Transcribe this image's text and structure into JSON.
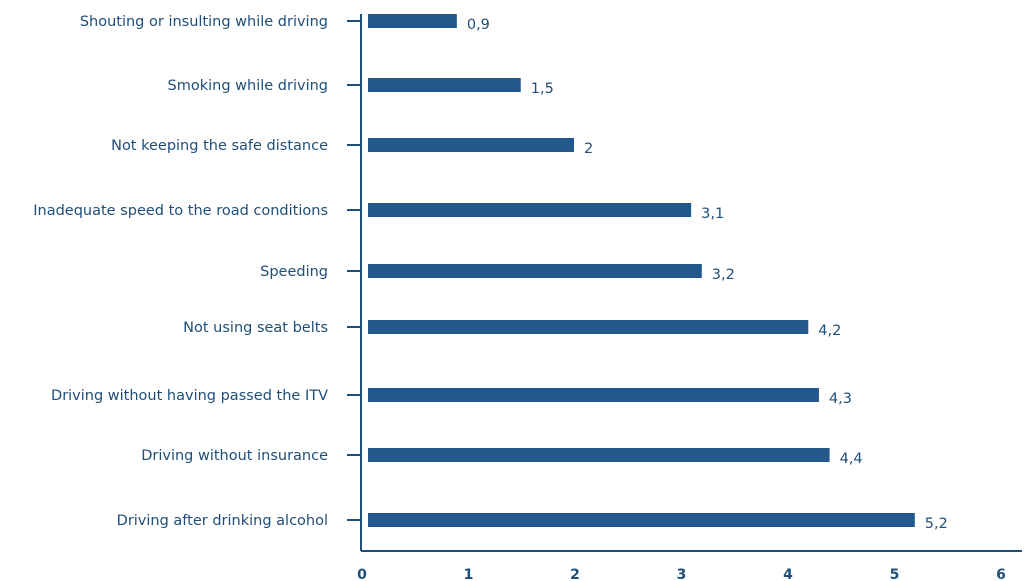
{
  "chart_data": {
    "type": "bar",
    "orientation": "horizontal",
    "categories": [
      "Shouting or insulting while driving",
      "Smoking while driving",
      "Not keeping the safe distance",
      "Inadequate speed to the road conditions",
      "Speeding",
      "Not using seat belts",
      "Driving without having passed the ITV",
      "Driving without insurance",
      "Driving after drinking alcohol"
    ],
    "values": [
      0.9,
      1.5,
      2,
      3.1,
      3.2,
      4.2,
      4.3,
      4.4,
      5.2
    ],
    "value_labels": [
      "0,9",
      "1,5",
      "2",
      "3,1",
      "3,2",
      "4,2",
      "4,3",
      "4,4",
      "5,2"
    ],
    "x_ticks": [
      "0",
      "1",
      "2",
      "3",
      "4",
      "5",
      "6"
    ],
    "xlim": [
      0,
      6
    ],
    "grid": false,
    "legend": "none",
    "bar_color": "#23588c",
    "axis_color": "#1f4e79",
    "text_color": "#1f4e79"
  }
}
